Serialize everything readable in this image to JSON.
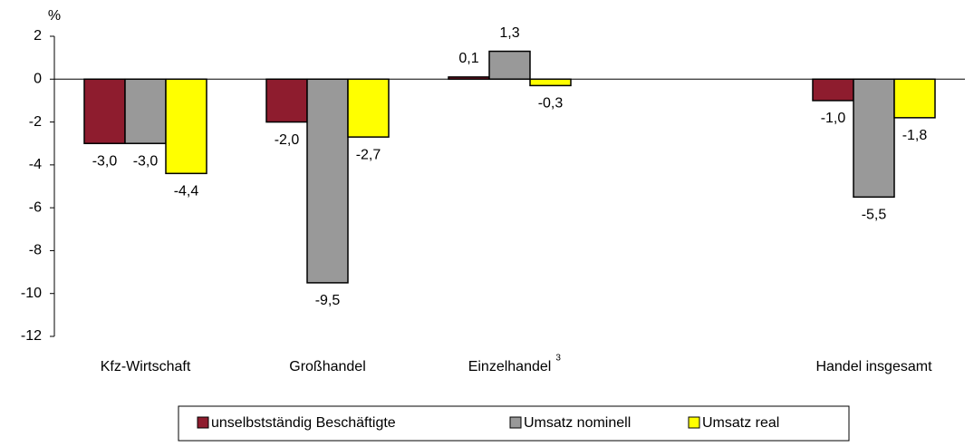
{
  "chart_data": {
    "type": "bar",
    "y_unit_label": "%",
    "categories": [
      "Kfz-Wirtschaft",
      "Großhandel",
      "Einzelhandel",
      null,
      "Handel  insgesamt"
    ],
    "category_notes": [
      null,
      null,
      "3",
      null,
      null
    ],
    "series": [
      {
        "name": "unselbstständig Beschäftigte",
        "color": "#8e1c2e",
        "values": [
          -3.0,
          -2.0,
          0.1,
          null,
          -1.0
        ],
        "value_labels": [
          "-3,0",
          "-2,0",
          "0,1",
          null,
          "-1,0"
        ]
      },
      {
        "name": "Umsatz nominell",
        "color": "#999999",
        "values": [
          -3.0,
          -9.5,
          1.3,
          null,
          -5.5
        ],
        "value_labels": [
          "-3,0",
          "-9,5",
          "1,3",
          null,
          "-5,5"
        ]
      },
      {
        "name": "Umsatz real",
        "color": "#ffff00",
        "values": [
          -4.4,
          -2.7,
          -0.3,
          null,
          -1.8
        ],
        "value_labels": [
          "-4,4",
          "-2,7",
          "-0,3",
          null,
          "-1,8"
        ]
      }
    ],
    "ylim": [
      -12,
      2
    ],
    "yticks": [
      -12,
      -10,
      -8,
      -6,
      -4,
      -2,
      0,
      2
    ],
    "grid": false,
    "legend": "bottom"
  }
}
